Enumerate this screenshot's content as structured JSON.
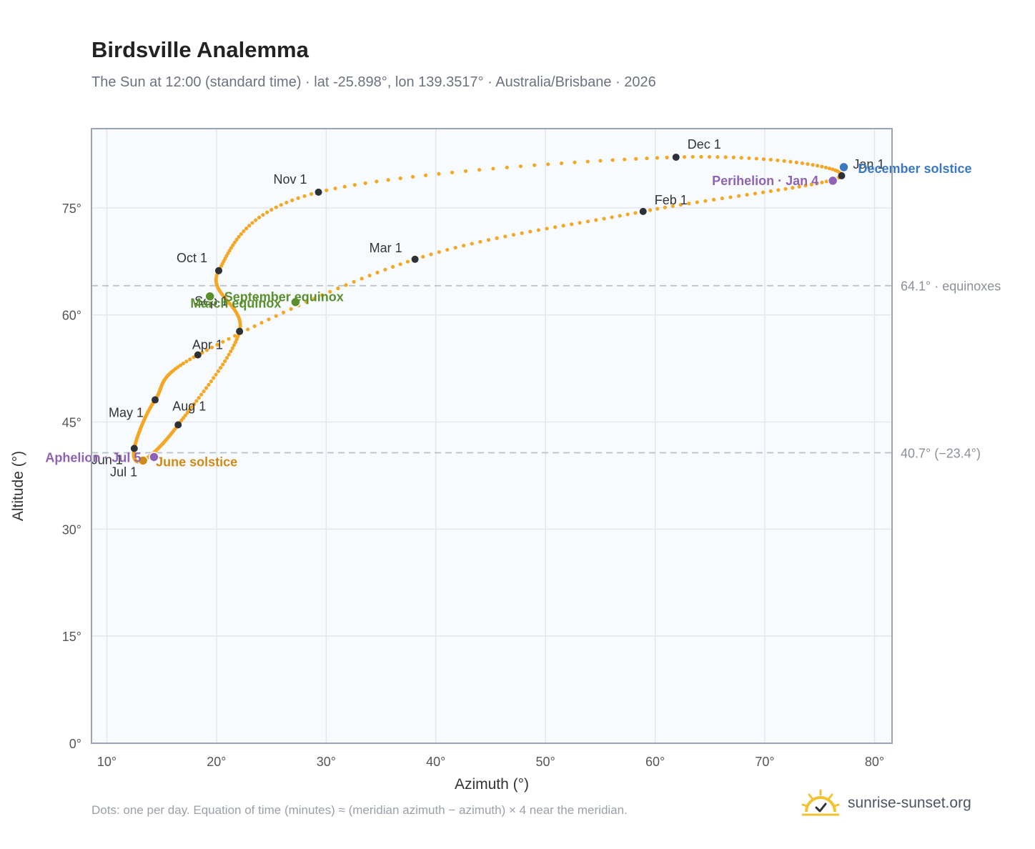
{
  "header": {
    "title": "Birdsville Analemma",
    "subtitle": "The Sun at 12:00 (standard time) · lat -25.898°, lon 139.3517° · Australia/Brisbane · 2026"
  },
  "footer": {
    "note": "Dots: one per day. Equation of time (minutes) ≈ (meridian azimuth − azimuth) × 4 near the meridian.",
    "brand": "sunrise-sunset.org"
  },
  "icons": {
    "brand_logo": "sun-logo-icon"
  },
  "chart_data": {
    "type": "scatter",
    "title": "Birdsville Analemma",
    "xlabel": "Azimuth (°)",
    "ylabel": "Altitude (°)",
    "xlim": [
      8.6,
      81.6
    ],
    "ylim": [
      0,
      86.1
    ],
    "xticks": [
      10,
      20,
      30,
      40,
      50,
      60,
      70,
      80
    ],
    "yticks": [
      0,
      15,
      30,
      45,
      60,
      75
    ],
    "xtick_labels": [
      "10°",
      "20°",
      "30°",
      "40°",
      "50°",
      "60°",
      "70°",
      "80°"
    ],
    "ytick_labels": [
      "0°",
      "15°",
      "30°",
      "45°",
      "60°",
      "75°"
    ],
    "grid": true,
    "colors": {
      "path": "#f5a623",
      "month": "#2d3136",
      "equinox": "#5a8f2e",
      "solstice_december": "#3b78c2",
      "solstice_june": "#d08a16",
      "apsis": "#8e63b5",
      "ref_line": "#b8c0ca",
      "plot_bg": "#f8fbfd",
      "grid": "#e1e7ed",
      "frame": "#9aa3b0"
    },
    "reference_lines": [
      {
        "altitude": 64.1,
        "label": "64.1° · equinoxes"
      },
      {
        "altitude": 40.7,
        "label": "40.7° (−23.4°)"
      }
    ],
    "key_points": [
      {
        "label": "Jan 1",
        "azimuth": 77.0,
        "altitude": 79.5
      },
      {
        "label": "Feb 1",
        "azimuth": 58.9,
        "altitude": 74.5
      },
      {
        "label": "Mar 1",
        "azimuth": 38.1,
        "altitude": 67.8
      },
      {
        "label": "Apr 1",
        "azimuth": 18.3,
        "altitude": 54.4
      },
      {
        "label": "May 1",
        "azimuth": 14.4,
        "altitude": 48.1
      },
      {
        "label": "Jun 1",
        "azimuth": 12.5,
        "altitude": 41.3
      },
      {
        "label": "Jul 1",
        "azimuth": 13.3,
        "altitude": 39.6
      },
      {
        "label": "Aug 1",
        "azimuth": 16.5,
        "altitude": 44.6
      },
      {
        "label": "Sep 1",
        "azimuth": 22.1,
        "altitude": 57.7
      },
      {
        "label": "Oct 1",
        "azimuth": 20.2,
        "altitude": 66.2
      },
      {
        "label": "Nov 1",
        "azimuth": 29.3,
        "altitude": 77.2
      },
      {
        "label": "Dec 1",
        "azimuth": 61.9,
        "altitude": 82.1
      }
    ],
    "events": [
      {
        "label": "December solstice",
        "azimuth": 77.2,
        "altitude": 80.7,
        "type": "solstice_december"
      },
      {
        "label": "Perihelion · Jan 4",
        "azimuth": 76.2,
        "altitude": 78.8,
        "type": "apsis"
      },
      {
        "label": "March equinox",
        "azimuth": 27.2,
        "altitude": 61.8,
        "type": "equinox"
      },
      {
        "label": "September equinox",
        "azimuth": 19.4,
        "altitude": 62.6,
        "type": "equinox"
      },
      {
        "label": "June solstice",
        "azimuth": 13.3,
        "altitude": 39.6,
        "type": "solstice_june"
      },
      {
        "label": "Aphelion · Jul 5",
        "azimuth": 14.3,
        "altitude": 40.1,
        "type": "apsis"
      }
    ]
  }
}
